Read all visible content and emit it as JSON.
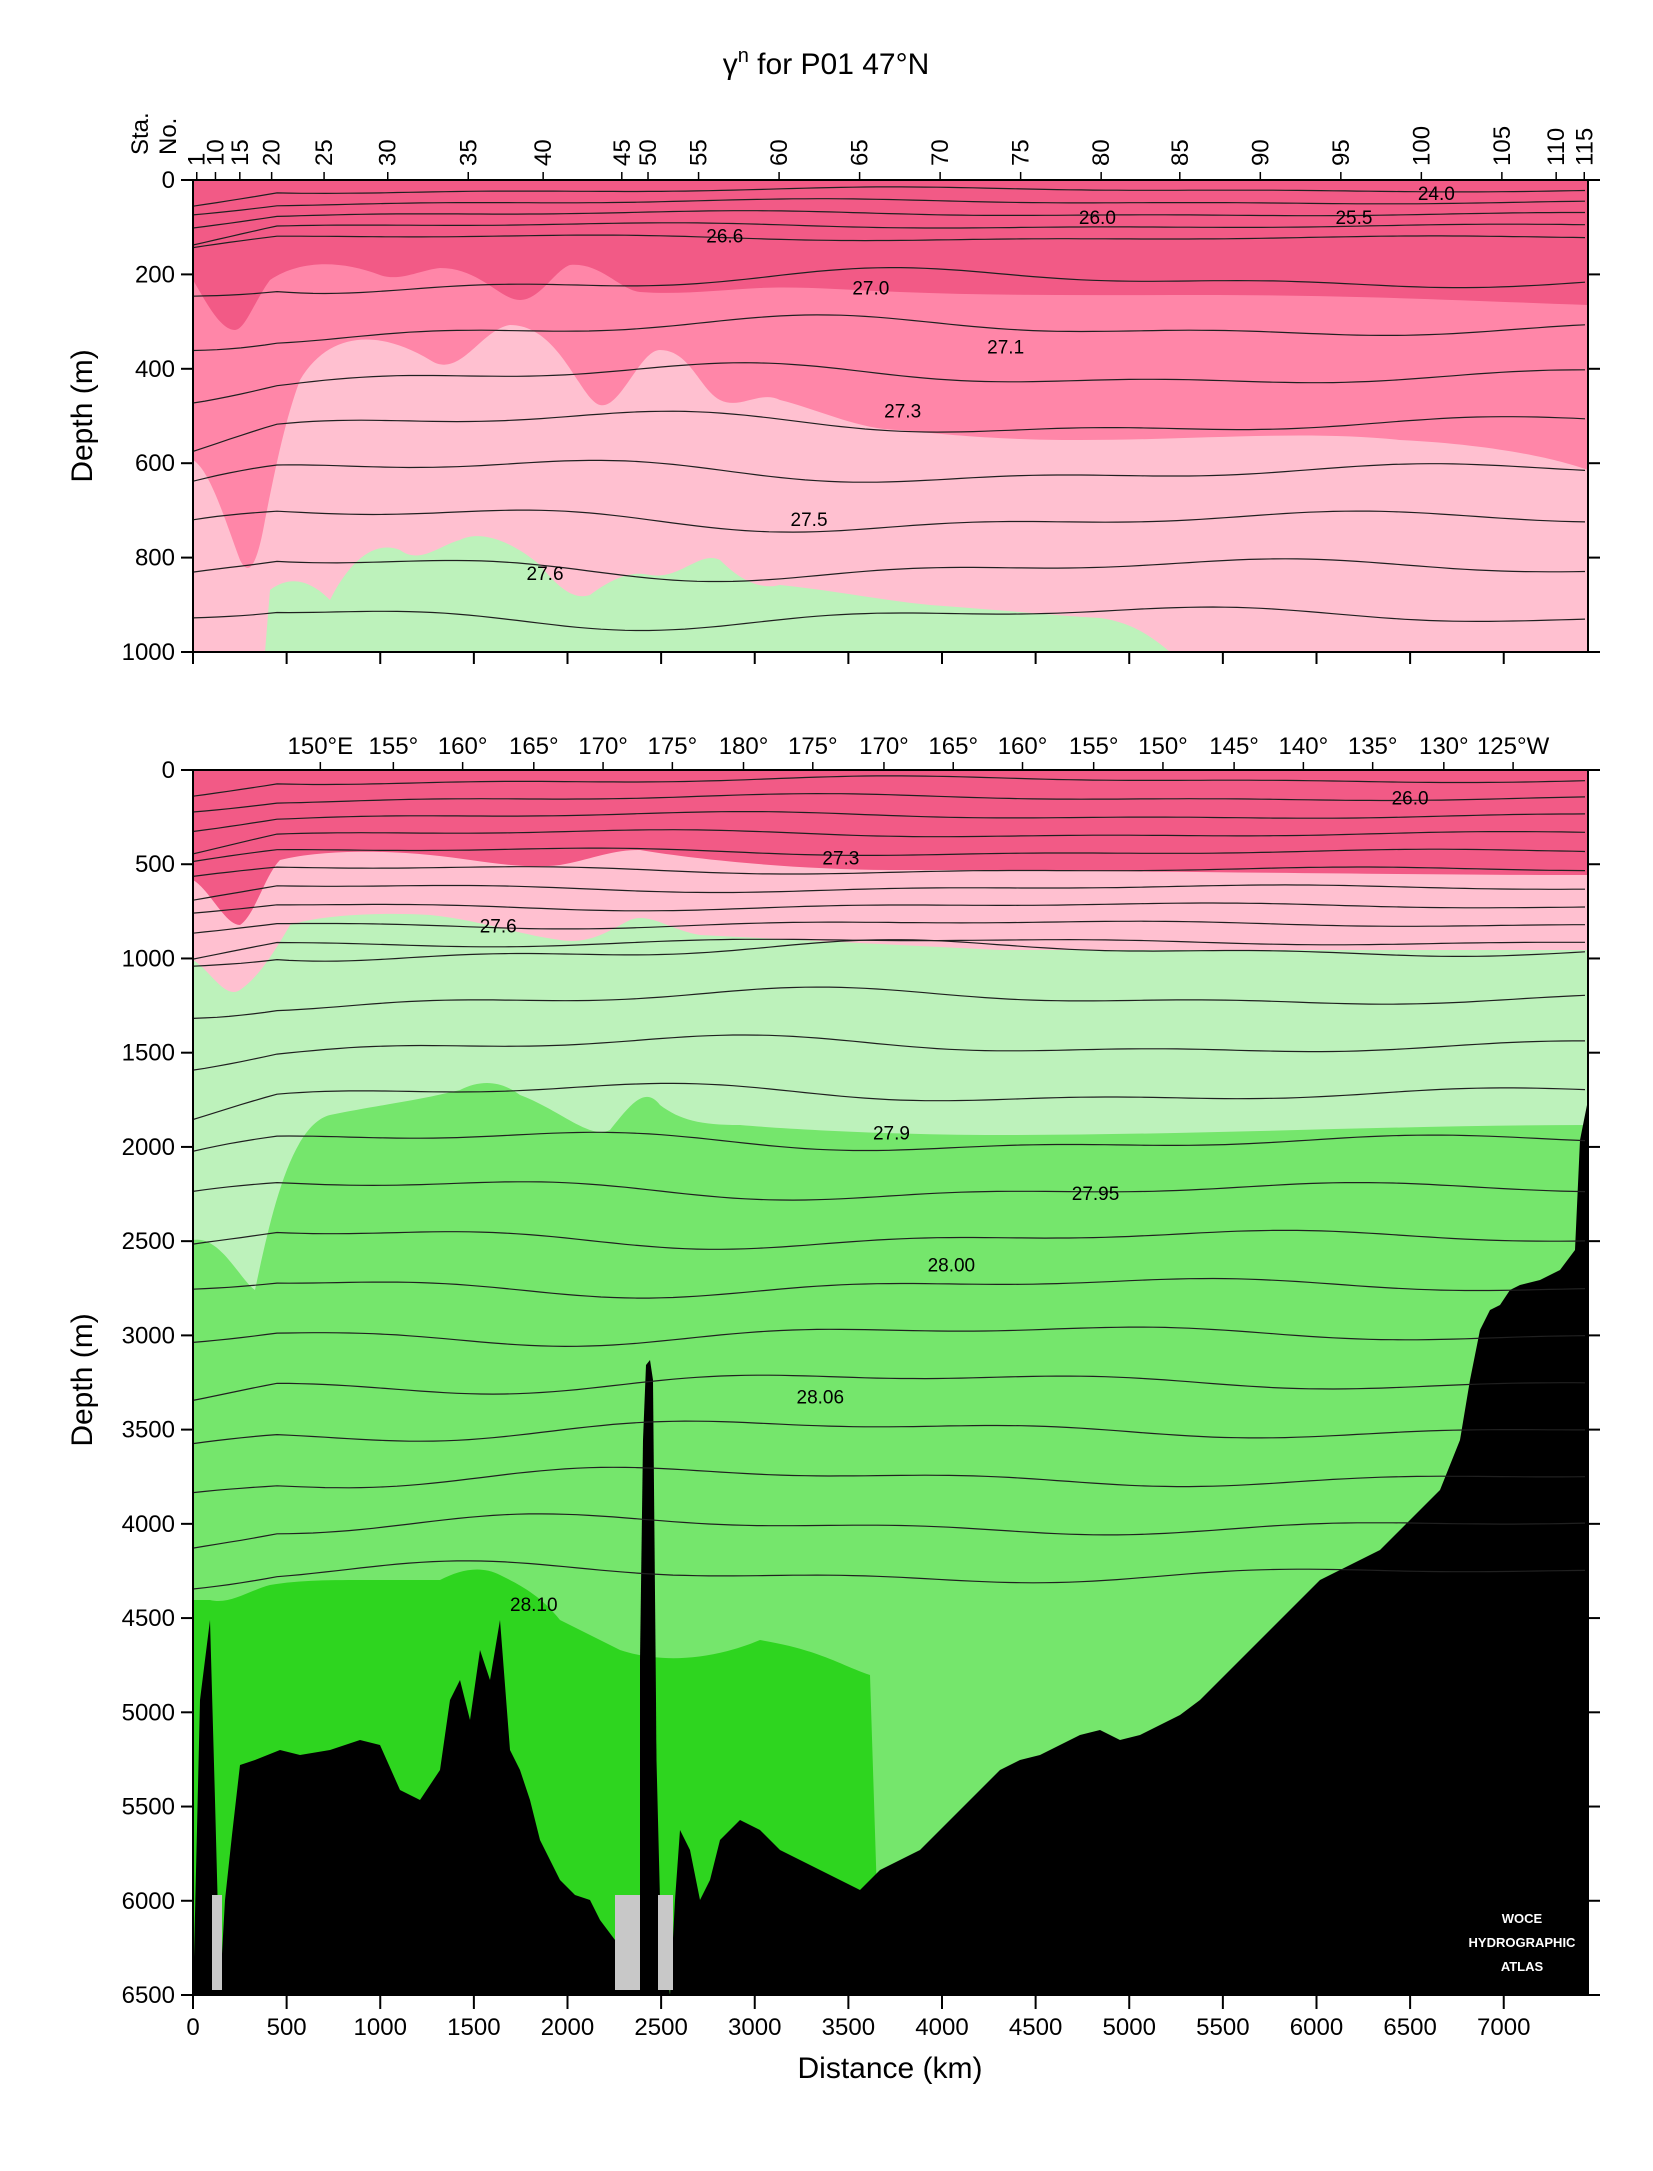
{
  "colors": {
    "band_dark_pink": "#f25a86",
    "band_mid_pink": "#ff86a8",
    "band_light_pink": "#ffc0d0",
    "band_light_green": "#bdf2bb",
    "band_mid_green": "#75e66c",
    "band_bright_green": "#2ed51f",
    "bottom": "#000000",
    "no_data": "#c8c8c8",
    "contour": "#202020"
  },
  "chart_data": {
    "title": "γⁿ for P01 47°N",
    "title_main": "γ",
    "title_sup": "n",
    "title_rest": " for P01 47°N",
    "stamp": [
      "WOCE",
      "HYDROGRAPHIC",
      "ATLAS"
    ],
    "panels": [
      {
        "type": "area",
        "panel": "top",
        "ylabel": "Depth (m)",
        "ylim": [
          1000,
          0
        ],
        "xlim": [
          0,
          7450
        ],
        "y_ticks": [
          0,
          200,
          400,
          600,
          800,
          1000
        ],
        "station_axis_label": [
          "Sta.",
          "No."
        ],
        "stations": [
          {
            "label": "1",
            "x": 20
          },
          {
            "label": "10",
            "x": 120
          },
          {
            "label": "15",
            "x": 250
          },
          {
            "label": "20",
            "x": 420
          },
          {
            "label": "25",
            "x": 700
          },
          {
            "label": "30",
            "x": 1040
          },
          {
            "label": "35",
            "x": 1470
          },
          {
            "label": "40",
            "x": 1870
          },
          {
            "label": "45",
            "x": 2290
          },
          {
            "label": "50",
            "x": 2430
          },
          {
            "label": "55",
            "x": 2700
          },
          {
            "label": "60",
            "x": 3130
          },
          {
            "label": "65",
            "x": 3560
          },
          {
            "label": "70",
            "x": 3990
          },
          {
            "label": "75",
            "x": 4420
          },
          {
            "label": "80",
            "x": 4850
          },
          {
            "label": "85",
            "x": 5270
          },
          {
            "label": "90",
            "x": 5700
          },
          {
            "label": "95",
            "x": 6130
          },
          {
            "label": "100",
            "x": 6560
          },
          {
            "label": "105",
            "x": 6990
          },
          {
            "label": "110",
            "x": 7280
          },
          {
            "label": "115",
            "x": 7430
          }
        ],
        "contour_labels": [
          {
            "text": "24.0",
            "x": 6640,
            "y": 30
          },
          {
            "text": "26.0",
            "x": 4830,
            "y": 80
          },
          {
            "text": "25.5",
            "x": 6200,
            "y": 80
          },
          {
            "text": "26.6",
            "x": 2840,
            "y": 120
          },
          {
            "text": "27.0",
            "x": 3620,
            "y": 230
          },
          {
            "text": "27.1",
            "x": 4340,
            "y": 355
          },
          {
            "text": "27.3",
            "x": 3790,
            "y": 490
          },
          {
            "text": "27.5",
            "x": 3290,
            "y": 720
          },
          {
            "text": "27.6",
            "x": 1880,
            "y": 835
          }
        ]
      },
      {
        "type": "area",
        "panel": "bottom",
        "xlabel": "Distance (km)",
        "ylabel": "Depth (m)",
        "ylim": [
          6500,
          0
        ],
        "xlim": [
          0,
          7450
        ],
        "x_ticks": [
          0,
          500,
          1000,
          1500,
          2000,
          2500,
          3000,
          3500,
          4000,
          4500,
          5000,
          5500,
          6000,
          6500,
          7000
        ],
        "y_ticks": [
          0,
          500,
          1000,
          1500,
          2000,
          2500,
          3000,
          3500,
          4000,
          4500,
          5000,
          5500,
          6000,
          6500
        ],
        "longitudes": [
          {
            "label": "150°E",
            "x": 680
          },
          {
            "label": "155°",
            "x": 1070
          },
          {
            "label": "160°",
            "x": 1440
          },
          {
            "label": "165°",
            "x": 1820
          },
          {
            "label": "170°",
            "x": 2190
          },
          {
            "label": "175°",
            "x": 2560
          },
          {
            "label": "180°",
            "x": 2940
          },
          {
            "label": "175°",
            "x": 3310
          },
          {
            "label": "170°",
            "x": 3690
          },
          {
            "label": "165°",
            "x": 4060
          },
          {
            "label": "160°",
            "x": 4430
          },
          {
            "label": "155°",
            "x": 4810
          },
          {
            "label": "150°",
            "x": 5180
          },
          {
            "label": "145°",
            "x": 5560
          },
          {
            "label": "140°",
            "x": 5930
          },
          {
            "label": "135°",
            "x": 6300
          },
          {
            "label": "130°",
            "x": 6680
          },
          {
            "label": "125°W",
            "x": 7050
          }
        ],
        "contour_labels": [
          {
            "text": "26.0",
            "x": 6500,
            "y": 150
          },
          {
            "text": "27.3",
            "x": 3460,
            "y": 470
          },
          {
            "text": "27.6",
            "x": 1630,
            "y": 830
          },
          {
            "text": "27.9",
            "x": 3730,
            "y": 1930
          },
          {
            "text": "27.95",
            "x": 4820,
            "y": 2250
          },
          {
            "text": "28.00",
            "x": 4050,
            "y": 2630
          },
          {
            "text": "28.06",
            "x": 3350,
            "y": 3330
          },
          {
            "text": "28.10",
            "x": 1820,
            "y": 4430
          }
        ]
      }
    ]
  }
}
